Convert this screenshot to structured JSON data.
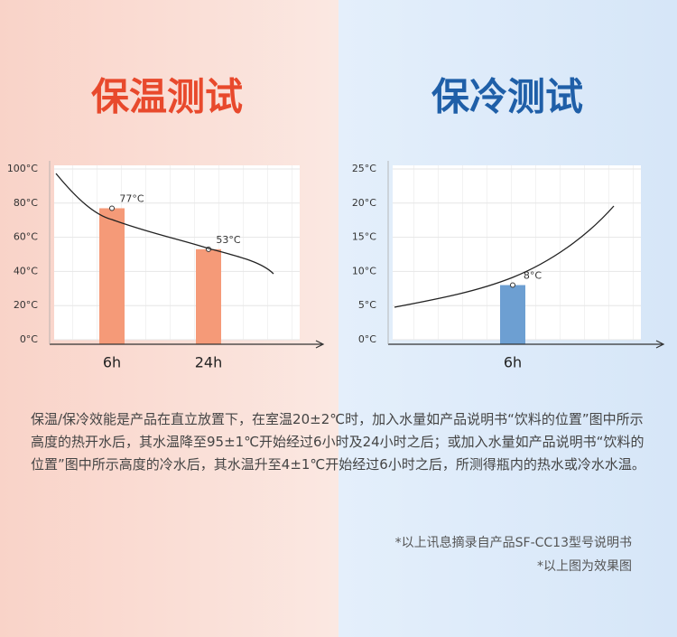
{
  "chart_data": [
    {
      "type": "bar",
      "title": "保温测试",
      "categories": [
        "6h",
        "24h"
      ],
      "values": [
        77,
        53
      ],
      "value_labels": [
        "77°C",
        "53°C"
      ],
      "color": "#f59a78",
      "ylim": [
        0,
        100
      ],
      "yticks": [
        {
          "value": 0,
          "label": "0°C"
        },
        {
          "value": 20,
          "label": "20°C"
        },
        {
          "value": 40,
          "label": "40°C"
        },
        {
          "value": 60,
          "label": "60°C"
        },
        {
          "value": 80,
          "label": "80°C"
        },
        {
          "value": 100,
          "label": "100°C"
        }
      ]
    },
    {
      "type": "bar",
      "title": "保冷测试",
      "categories": [
        "6h"
      ],
      "values": [
        8
      ],
      "value_labels": [
        "8°C"
      ],
      "color": "#6d9fd2",
      "ylim": [
        0,
        25
      ],
      "yticks": [
        {
          "value": 0,
          "label": "0°C"
        },
        {
          "value": 5,
          "label": "5°C"
        },
        {
          "value": 10,
          "label": "10°C"
        },
        {
          "value": 15,
          "label": "15°C"
        },
        {
          "value": 20,
          "label": "20°C"
        },
        {
          "value": 25,
          "label": "25°C"
        }
      ]
    }
  ],
  "description": "保温/保冷效能是产品在直立放置下，在室温20±2℃时，加入水量如产品说明书“饮料的位置”图中所示高度的热开水后，其水温降至95±1℃开始经过6小时及24小时之后；或加入水量如产品说明书“饮料的位置”图中所示高度的冷水后，其水温升至4±1℃开始经过6小时之后，所测得瓶内的热水或冷水水温。",
  "notes": [
    "*以上讯息摘录自产品SF-CC13型号说明书",
    "*以上图为效果图"
  ]
}
